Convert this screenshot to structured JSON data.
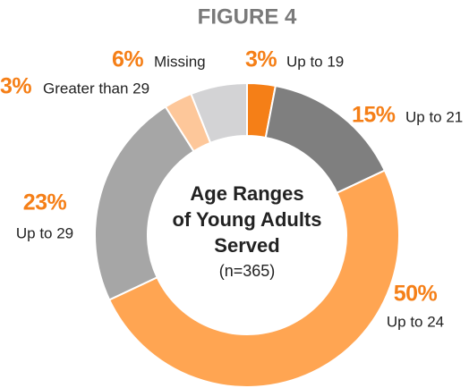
{
  "chart_data": {
    "type": "donut",
    "title": "FIGURE 4",
    "center_title": [
      "Age Ranges",
      "of Young Adults",
      "Served"
    ],
    "center_subtitle": "(n=365)",
    "categories": [
      "Up to 19",
      "Up to 21",
      "Up to 24",
      "Up to 29",
      "Greater than 29",
      "Missing"
    ],
    "values": [
      3,
      15,
      50,
      23,
      3,
      6
    ],
    "value_labels": [
      "3%",
      "15%",
      "50%",
      "23%",
      "3%",
      "6%"
    ],
    "colors": [
      "#f57f17",
      "#7f7f7f",
      "#ffa552",
      "#a6a6a6",
      "#fdc79a",
      "#d3d3d5"
    ],
    "label_color": "#f57f17"
  }
}
